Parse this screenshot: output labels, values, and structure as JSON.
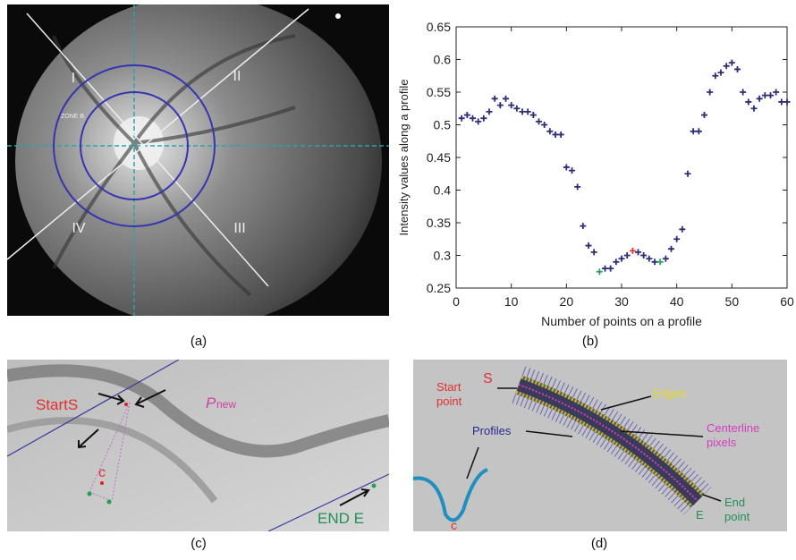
{
  "chart_data": {
    "type": "scatter",
    "xlabel": "Number of points on a profile",
    "ylabel": "Intensity values along a profile",
    "xlim": [
      0,
      60
    ],
    "xticks": [
      0,
      10,
      20,
      30,
      40,
      50,
      60
    ],
    "ylim": [
      0.25,
      0.65
    ],
    "yticks": [
      0.25,
      0.3,
      0.35,
      0.4,
      0.45,
      0.5,
      0.55,
      0.6,
      0.65
    ],
    "series": [
      {
        "color": "#2e2e78",
        "x": [
          1,
          2,
          3,
          4,
          5,
          6,
          7,
          8,
          9,
          10,
          11,
          12,
          13,
          14,
          15,
          16,
          17,
          18,
          19,
          20,
          21,
          22,
          23,
          24,
          25,
          27,
          28,
          29,
          30,
          31,
          33,
          34,
          35,
          36,
          38,
          39,
          40,
          41,
          42,
          43,
          44,
          45,
          46,
          47,
          48,
          49,
          50,
          51,
          52,
          53,
          54,
          55,
          56,
          57,
          58,
          59,
          60
        ],
        "values": [
          0.51,
          0.515,
          0.51,
          0.505,
          0.51,
          0.52,
          0.54,
          0.53,
          0.54,
          0.53,
          0.525,
          0.52,
          0.52,
          0.515,
          0.505,
          0.5,
          0.49,
          0.485,
          0.485,
          0.435,
          0.43,
          0.405,
          0.345,
          0.315,
          0.305,
          0.28,
          0.28,
          0.29,
          0.295,
          0.3,
          0.305,
          0.3,
          0.295,
          0.29,
          0.295,
          0.31,
          0.325,
          0.34,
          0.425,
          0.49,
          0.49,
          0.515,
          0.55,
          0.575,
          0.58,
          0.59,
          0.595,
          0.585,
          0.55,
          0.535,
          0.525,
          0.54,
          0.545,
          0.545,
          0.55,
          0.535,
          0.535
        ]
      },
      {
        "color": "#2ca55a",
        "x": [
          26,
          37
        ],
        "values": [
          0.275,
          0.29
        ]
      },
      {
        "color": "#e0402a",
        "x": [
          32
        ],
        "values": [
          0.307
        ]
      }
    ]
  },
  "panels": {
    "a": {
      "caption": "(a)",
      "labels": [
        "I",
        "II",
        "III",
        "IV",
        "ZONE B"
      ]
    },
    "b": {
      "caption": "(b)"
    },
    "c": {
      "caption": "(c)",
      "labels": [
        "StartS",
        "P",
        "new",
        "c",
        "END E"
      ]
    },
    "d": {
      "caption": "(d)",
      "labels": [
        "S",
        "Start",
        "point",
        "Edges",
        "Centerline",
        "pixels",
        "Profiles",
        "End",
        "point",
        "E",
        "c"
      ]
    }
  }
}
